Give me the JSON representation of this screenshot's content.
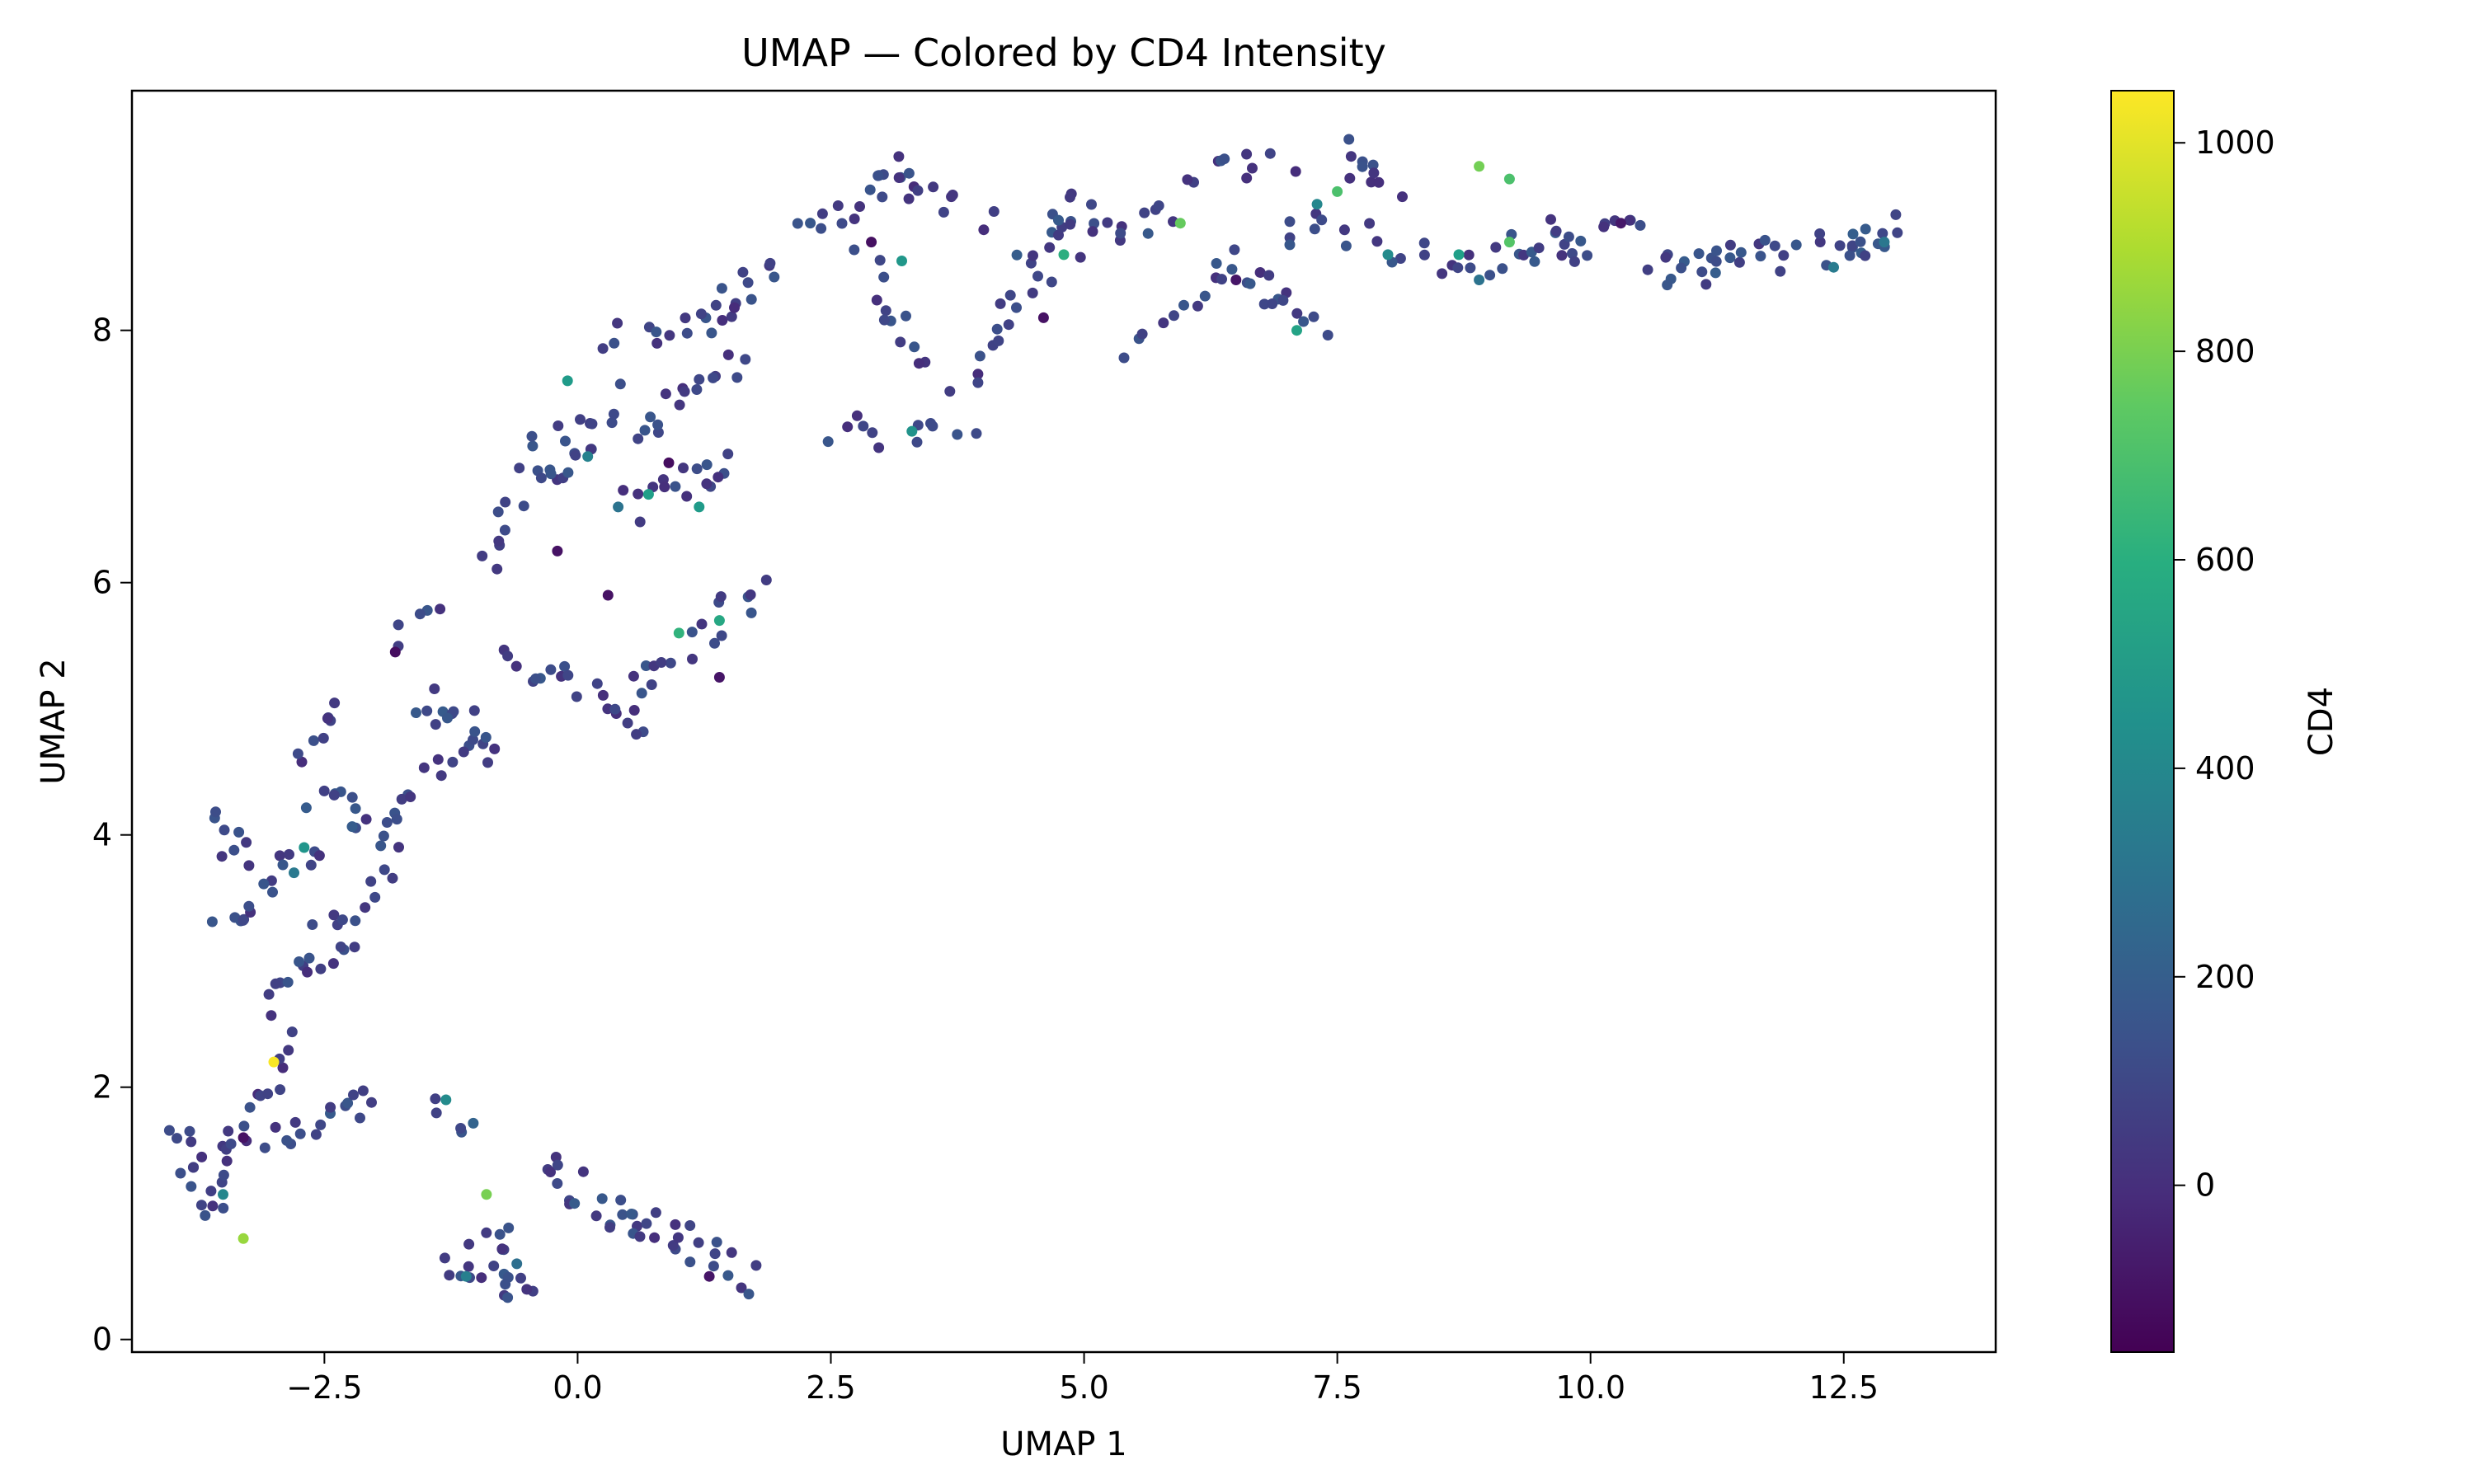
{
  "chart_data": {
    "type": "scatter",
    "title": "UMAP — Colored by CD4 Intensity",
    "xlabel": "UMAP 1",
    "ylabel": "UMAP 2",
    "xlim": [
      -4.4,
      14.0
    ],
    "ylim": [
      -0.1,
      9.9
    ],
    "xticks": [
      -2.5,
      0.0,
      2.5,
      5.0,
      7.5,
      10.0,
      12.5
    ],
    "xtick_labels": [
      "−2.5",
      "0.0",
      "2.5",
      "5.0",
      "7.5",
      "10.0",
      "12.5"
    ],
    "yticks": [
      0,
      2,
      4,
      6,
      8
    ],
    "ytick_labels": [
      "0",
      "2",
      "4",
      "6",
      "8"
    ],
    "grid": false,
    "colorbar": {
      "label": "CD4",
      "colormap": "viridis",
      "range": [
        -160,
        1050
      ],
      "ticks": [
        0,
        200,
        400,
        600,
        800,
        1000
      ],
      "tick_labels": [
        "0",
        "200",
        "400",
        "600",
        "800",
        "1000"
      ]
    },
    "segments": [
      {
        "x0": -4.0,
        "y0": 1.65,
        "x1": -3.6,
        "y1": 1.0,
        "n": 14,
        "c": 80
      },
      {
        "x0": -3.6,
        "y0": 1.3,
        "x1": -2.9,
        "y1": 2.3,
        "n": 18,
        "c": 80
      },
      {
        "x0": -3.0,
        "y0": 1.5,
        "x1": -2.0,
        "y1": 1.95,
        "n": 16,
        "c": 90
      },
      {
        "x0": -3.5,
        "y0": 3.3,
        "x1": -2.6,
        "y1": 3.9,
        "n": 16,
        "c": 80
      },
      {
        "x0": -3.1,
        "y0": 2.7,
        "x1": -2.4,
        "y1": 3.3,
        "n": 14,
        "c": 80
      },
      {
        "x0": -3.6,
        "y0": 4.25,
        "x1": -3.3,
        "y1": 3.7,
        "n": 8,
        "c": 80
      },
      {
        "x0": -2.4,
        "y0": 3.0,
        "x1": -1.8,
        "y1": 3.7,
        "n": 10,
        "c": 90
      },
      {
        "x0": -2.8,
        "y0": 4.6,
        "x1": -2.4,
        "y1": 5.05,
        "n": 8,
        "c": 80
      },
      {
        "x0": -2.6,
        "y0": 4.35,
        "x1": -1.7,
        "y1": 4.0,
        "n": 16,
        "c": 100
      },
      {
        "x0": -1.7,
        "y0": 4.3,
        "x1": -0.8,
        "y1": 4.8,
        "n": 12,
        "c": 100
      },
      {
        "x0": -1.6,
        "y0": 5.1,
        "x1": -0.9,
        "y1": 4.8,
        "n": 12,
        "c": 100
      },
      {
        "x0": -1.9,
        "y0": 5.5,
        "x1": -1.3,
        "y1": 5.8,
        "n": 5,
        "c": 80
      },
      {
        "x0": -0.7,
        "y0": 5.4,
        "x1": 0.7,
        "y1": 4.9,
        "n": 20,
        "c": 90
      },
      {
        "x0": 0.5,
        "y0": 5.1,
        "x1": 1.8,
        "y1": 6.0,
        "n": 18,
        "c": 90
      },
      {
        "x0": -0.9,
        "y0": 6.1,
        "x1": -0.3,
        "y1": 7.2,
        "n": 14,
        "c": 80
      },
      {
        "x0": -0.3,
        "y0": 6.7,
        "x1": 0.3,
        "y1": 7.5,
        "n": 16,
        "c": 80
      },
      {
        "x0": 0.3,
        "y0": 7.9,
        "x1": 1.6,
        "y1": 8.15,
        "n": 14,
        "c": 80
      },
      {
        "x0": 0.6,
        "y0": 7.2,
        "x1": 1.6,
        "y1": 7.8,
        "n": 16,
        "c": 90
      },
      {
        "x0": 0.5,
        "y0": 6.6,
        "x1": 1.6,
        "y1": 7.0,
        "n": 16,
        "c": 90
      },
      {
        "x0": 1.3,
        "y0": 8.1,
        "x1": 2.0,
        "y1": 8.55,
        "n": 10,
        "c": 80
      },
      {
        "x0": 2.3,
        "y0": 8.8,
        "x1": 3.3,
        "y1": 9.3,
        "n": 16,
        "c": 80
      },
      {
        "x0": 3.2,
        "y0": 9.2,
        "x1": 4.0,
        "y1": 8.9,
        "n": 10,
        "c": 80
      },
      {
        "x0": 2.8,
        "y0": 8.5,
        "x1": 3.4,
        "y1": 7.7,
        "n": 12,
        "c": 80
      },
      {
        "x0": 2.4,
        "y0": 7.2,
        "x1": 3.9,
        "y1": 7.2,
        "n": 12,
        "c": 80
      },
      {
        "x0": 3.8,
        "y0": 7.6,
        "x1": 4.6,
        "y1": 8.4,
        "n": 14,
        "c": 80
      },
      {
        "x0": 4.4,
        "y0": 8.6,
        "x1": 5.0,
        "y1": 9.05,
        "n": 14,
        "c": 120
      },
      {
        "x0": 5.0,
        "y0": 8.7,
        "x1": 5.8,
        "y1": 8.9,
        "n": 12,
        "c": 90
      },
      {
        "x0": 5.5,
        "y0": 7.8,
        "x1": 6.2,
        "y1": 8.3,
        "n": 8,
        "c": 80
      },
      {
        "x0": 6.0,
        "y0": 9.2,
        "x1": 7.0,
        "y1": 9.3,
        "n": 10,
        "c": 80
      },
      {
        "x0": 6.3,
        "y0": 8.6,
        "x1": 7.3,
        "y1": 8.1,
        "n": 18,
        "c": 90
      },
      {
        "x0": 6.9,
        "y0": 8.8,
        "x1": 7.8,
        "y1": 8.8,
        "n": 10,
        "c": 90
      },
      {
        "x0": 7.6,
        "y0": 9.4,
        "x1": 8.1,
        "y1": 9.1,
        "n": 10,
        "c": 90
      },
      {
        "x0": 8.0,
        "y0": 8.7,
        "x1": 8.9,
        "y1": 8.5,
        "n": 8,
        "c": 90
      },
      {
        "x0": 8.9,
        "y0": 8.5,
        "x1": 9.8,
        "y1": 8.8,
        "n": 14,
        "c": 90
      },
      {
        "x0": 9.6,
        "y0": 8.6,
        "x1": 10.6,
        "y1": 8.8,
        "n": 12,
        "c": 90
      },
      {
        "x0": 10.6,
        "y0": 8.5,
        "x1": 11.3,
        "y1": 8.5,
        "n": 14,
        "c": 120
      },
      {
        "x0": 11.3,
        "y0": 8.55,
        "x1": 12.5,
        "y1": 8.65,
        "n": 16,
        "c": 110
      },
      {
        "x0": 12.5,
        "y0": 8.6,
        "x1": 13.05,
        "y1": 8.8,
        "n": 12,
        "c": 130
      },
      {
        "x0": -1.3,
        "y0": 0.5,
        "x1": -0.6,
        "y1": 0.9,
        "n": 12,
        "c": 80
      },
      {
        "x0": -0.9,
        "y0": 0.6,
        "x1": -0.4,
        "y1": 0.35,
        "n": 10,
        "c": 90
      },
      {
        "x0": -0.4,
        "y0": 1.4,
        "x1": 0.6,
        "y1": 0.85,
        "n": 18,
        "c": 100
      },
      {
        "x0": 0.5,
        "y0": 0.95,
        "x1": 1.8,
        "y1": 0.5,
        "n": 20,
        "c": 90
      },
      {
        "x0": -1.5,
        "y0": 1.9,
        "x1": -1.0,
        "y1": 1.65,
        "n": 5,
        "c": 160
      }
    ],
    "highlight_points": [
      {
        "x": -3.0,
        "y": 2.2,
        "c": 1040
      },
      {
        "x": -3.3,
        "y": 0.8,
        "c": 860
      },
      {
        "x": -0.9,
        "y": 1.15,
        "c": 800
      },
      {
        "x": 8.9,
        "y": 9.3,
        "c": 790
      },
      {
        "x": 5.95,
        "y": 8.85,
        "c": 760
      },
      {
        "x": 9.2,
        "y": 8.7,
        "c": 720
      },
      {
        "x": 9.2,
        "y": 9.2,
        "c": 700
      },
      {
        "x": 7.5,
        "y": 9.1,
        "c": 700
      },
      {
        "x": 1.0,
        "y": 5.6,
        "c": 620
      },
      {
        "x": 4.8,
        "y": 8.6,
        "c": 600
      },
      {
        "x": 1.4,
        "y": 5.7,
        "c": 560
      },
      {
        "x": 7.1,
        "y": 8.0,
        "c": 540
      },
      {
        "x": 0.7,
        "y": 6.7,
        "c": 520
      },
      {
        "x": 8.7,
        "y": 8.6,
        "c": 520
      },
      {
        "x": 1.2,
        "y": 6.6,
        "c": 500
      },
      {
        "x": -0.1,
        "y": 7.6,
        "c": 500
      },
      {
        "x": 3.2,
        "y": 8.55,
        "c": 480
      },
      {
        "x": -2.7,
        "y": 3.9,
        "c": 470
      },
      {
        "x": 3.3,
        "y": 7.2,
        "c": 460
      },
      {
        "x": -1.3,
        "y": 1.9,
        "c": 420
      },
      {
        "x": 8.0,
        "y": 8.6,
        "c": 420
      },
      {
        "x": -3.5,
        "y": 1.15,
        "c": 400
      },
      {
        "x": 7.3,
        "y": 9.0,
        "c": 400
      },
      {
        "x": 0.1,
        "y": 7.0,
        "c": 380
      },
      {
        "x": -1.1,
        "y": 0.5,
        "c": 360
      },
      {
        "x": 12.4,
        "y": 8.5,
        "c": 340
      },
      {
        "x": 12.9,
        "y": 8.7,
        "c": 320
      },
      {
        "x": -2.8,
        "y": 3.7,
        "c": 330
      },
      {
        "x": 0.4,
        "y": 6.6,
        "c": 300
      },
      {
        "x": 8.9,
        "y": 8.4,
        "c": 300
      },
      {
        "x": -0.6,
        "y": 0.6,
        "c": 280
      },
      {
        "x": -1.8,
        "y": 5.45,
        "c": -120
      },
      {
        "x": 0.3,
        "y": 5.9,
        "c": -100
      },
      {
        "x": 1.3,
        "y": 0.5,
        "c": -90
      },
      {
        "x": 4.6,
        "y": 8.1,
        "c": -100
      },
      {
        "x": 2.9,
        "y": 8.7,
        "c": -110
      },
      {
        "x": 0.9,
        "y": 6.95,
        "c": -120
      },
      {
        "x": 1.4,
        "y": 5.25,
        "c": -90
      },
      {
        "x": 10.3,
        "y": 8.85,
        "c": -80
      },
      {
        "x": -3.3,
        "y": 1.6,
        "c": -100
      },
      {
        "x": 6.5,
        "y": 8.4,
        "c": -90
      },
      {
        "x": -0.2,
        "y": 6.25,
        "c": -100
      }
    ]
  }
}
